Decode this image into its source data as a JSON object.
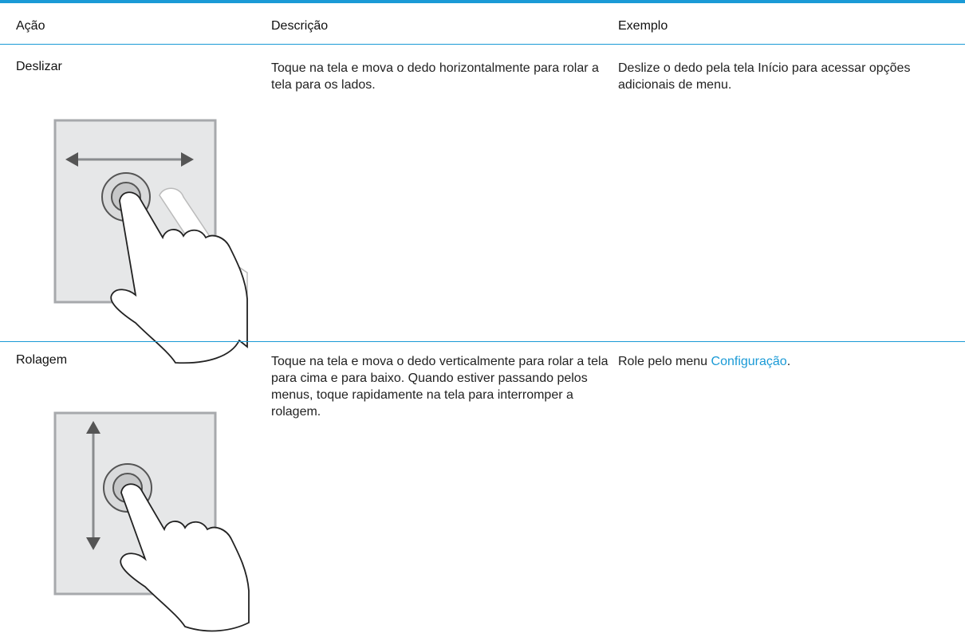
{
  "table": {
    "header": [
      "Ação",
      "Descrição",
      "Exemplo"
    ],
    "rows": [
      {
        "action": "Deslizar",
        "description": "Toque na tela e mova o dedo horizontalmente para rolar a tela para os lados.",
        "example": {
          "text": "Deslize o dedo pela tela Início para acessar opções adicionais de menu."
        }
      },
      {
        "action": "Rolagem",
        "description": "Toque na tela e mova o dedo verticalmente para rolar a tela para cima e para baixo. Quando estiver passando pelos menus, toque rapidamente na tela para interromper a rolagem.",
        "example": {
          "prefix": "Role pelo menu ",
          "link": "Configuração",
          "suffix": "."
        }
      }
    ]
  }
}
